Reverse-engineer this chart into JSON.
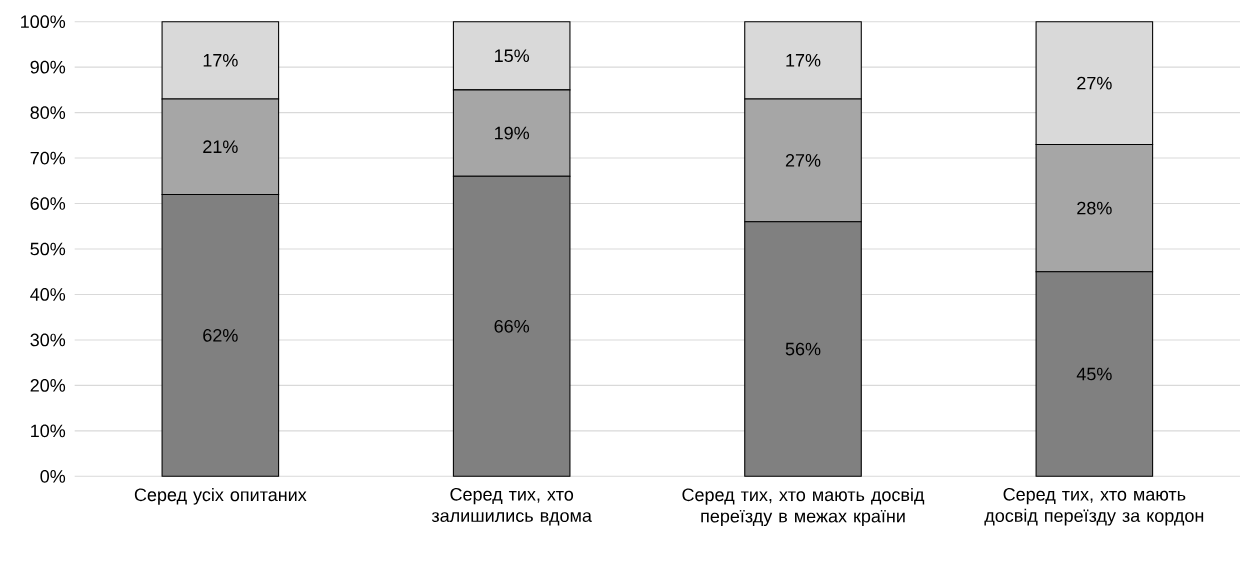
{
  "chart_data": {
    "type": "bar",
    "stacked": true,
    "categories": [
      "Серед усіх опитаних",
      "Серед тих, хто залишились вдома",
      "Серед тих, хто мають досвід переїзду в межах країни",
      "Серед тих, хто мають досвід переїзду за кордон"
    ],
    "series": [
      {
        "color": "#808080",
        "values": [
          62,
          66,
          56,
          45
        ],
        "value_labels": [
          "62%",
          "66%",
          "56%",
          "45%"
        ]
      },
      {
        "color": "#a6a6a6",
        "values": [
          21,
          19,
          27,
          28
        ],
        "value_labels": [
          "21%",
          "19%",
          "27%",
          "28%"
        ]
      },
      {
        "color": "#d9d9d9",
        "values": [
          17,
          15,
          17,
          27
        ],
        "value_labels": [
          "17%",
          "15%",
          "17%",
          "27%"
        ]
      }
    ],
    "ylim": [
      0,
      100
    ],
    "yticks": [
      {
        "value": 0,
        "label": "0%"
      },
      {
        "value": 10,
        "label": "10%"
      },
      {
        "value": 20,
        "label": "20%"
      },
      {
        "value": 30,
        "label": "30%"
      },
      {
        "value": 40,
        "label": "40%"
      },
      {
        "value": 50,
        "label": "50%"
      },
      {
        "value": 60,
        "label": "60%"
      },
      {
        "value": 70,
        "label": "70%"
      },
      {
        "value": 80,
        "label": "80%"
      },
      {
        "value": 90,
        "label": "90%"
      },
      {
        "value": 100,
        "label": "100%"
      }
    ],
    "grid": "y"
  }
}
